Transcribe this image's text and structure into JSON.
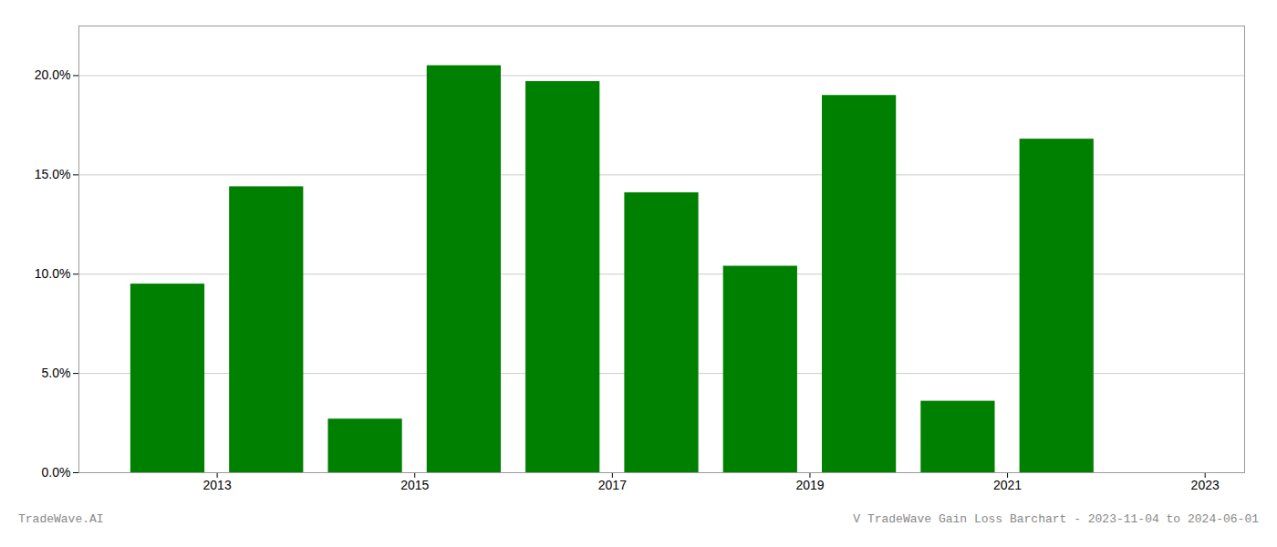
{
  "chart_data": {
    "type": "bar",
    "x": [
      2012.5,
      2013.5,
      2014.5,
      2015.5,
      2016.5,
      2017.5,
      2018.5,
      2019.5,
      2020.5,
      2021.5
    ],
    "values": [
      0.095,
      0.144,
      0.027,
      0.205,
      0.197,
      0.141,
      0.104,
      0.19,
      0.036,
      0.168
    ],
    "color": "#008000",
    "xlim": [
      2011.6,
      2023.4
    ],
    "xticks": [
      2013,
      2015,
      2017,
      2019,
      2021,
      2023
    ],
    "ylim": [
      0,
      0.225
    ],
    "yticks": [
      {
        "value": 0.0,
        "label": "0.0%"
      },
      {
        "value": 0.05,
        "label": "5.0%"
      },
      {
        "value": 0.1,
        "label": "10.0%"
      },
      {
        "value": 0.15,
        "label": "15.0%"
      },
      {
        "value": 0.2,
        "label": "20.0%"
      }
    ],
    "grid": true,
    "annotations": [
      "TradeWave.AI",
      "V TradeWave Gain Loss Barchart - 2023-11-04 to 2024-06-01"
    ]
  }
}
